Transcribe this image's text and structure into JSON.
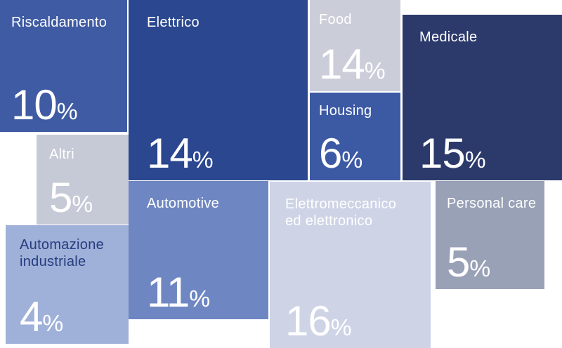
{
  "chart_data": {
    "type": "treemap",
    "title": "",
    "unit": "%",
    "legend": "none",
    "total": 100,
    "categories": [
      "Riscaldamento",
      "Elettrico",
      "Food",
      "Medicale",
      "Altri",
      "Housing",
      "Automazione industriale",
      "Automotive",
      "Elettromeccanico ed elettronico",
      "Personal care"
    ],
    "values": [
      10,
      14,
      14,
      15,
      5,
      6,
      4,
      11,
      16,
      5
    ]
  },
  "tiles": [
    {
      "id": "riscaldamento",
      "label": "Riscaldamento",
      "value": "10",
      "unit": "%",
      "bg": "#3f5ba3",
      "label_color": "#ffffff",
      "value_color": "#ffffff"
    },
    {
      "id": "elettrico",
      "label": "Elettrico",
      "value": "14",
      "unit": "%",
      "bg": "#2a478f",
      "label_color": "#ffffff",
      "value_color": "#ffffff"
    },
    {
      "id": "food",
      "label": "Food",
      "value": "14",
      "unit": "%",
      "bg": "#cbcdd9",
      "label_color": "#ffffff",
      "value_color": "#ffffff"
    },
    {
      "id": "housing",
      "label": "Housing",
      "value": "6",
      "unit": "%",
      "bg": "#3c59a4",
      "label_color": "#ffffff",
      "value_color": "#ffffff"
    },
    {
      "id": "medicale",
      "label": "Medicale",
      "value": "15",
      "unit": "%",
      "bg": "#2c3a6b",
      "label_color": "#ffffff",
      "value_color": "#ffffff"
    },
    {
      "id": "altri",
      "label": "Altri",
      "value": "5",
      "unit": "%",
      "bg": "#c6c9d6",
      "label_color": "#ffffff",
      "value_color": "#ffffff"
    },
    {
      "id": "automazione-industriale",
      "label": "Automazione\nindustriale",
      "value": "4",
      "unit": "%",
      "bg": "#9fb0d9",
      "label_color": "#263c7d",
      "value_color": "#ffffff"
    },
    {
      "id": "automotive",
      "label": "Automotive",
      "value": "11",
      "unit": "%",
      "bg": "#6e87c2",
      "label_color": "#ffffff",
      "value_color": "#ffffff"
    },
    {
      "id": "elettromeccanico",
      "label": "Elettromeccanico\ned elettronico",
      "value": "16",
      "unit": "%",
      "bg": "#ced3e6",
      "label_color": "#ffffff",
      "value_color": "#ffffff"
    },
    {
      "id": "personal-care",
      "label": "Personal care",
      "value": "5",
      "unit": "%",
      "bg": "#99a1b7",
      "label_color": "#ffffff",
      "value_color": "#ffffff"
    }
  ]
}
